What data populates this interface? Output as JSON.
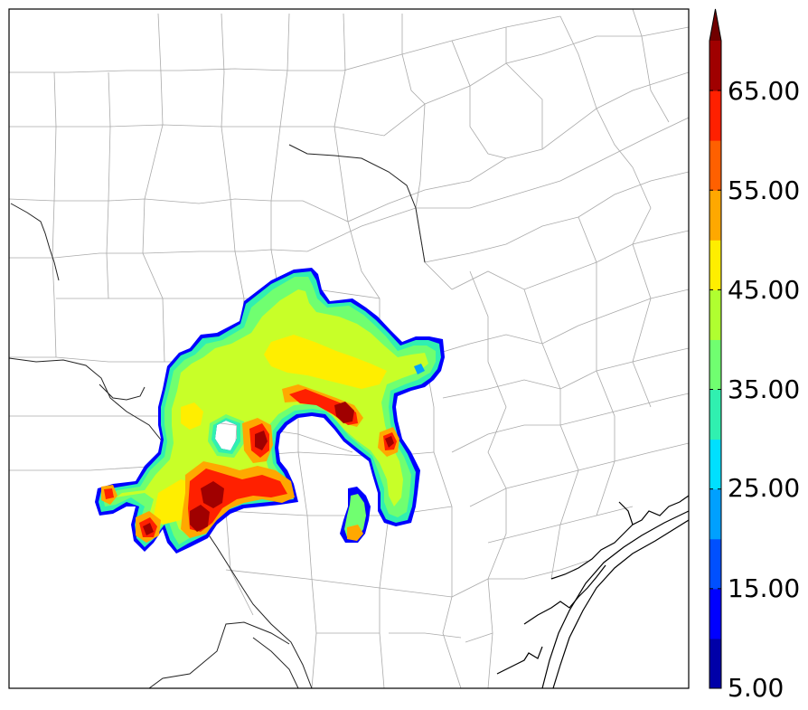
{
  "colorbar": {
    "tick_labels": [
      "5.00",
      "15.00",
      "25.00",
      "35.00",
      "45.00",
      "55.00",
      "65.00"
    ],
    "levels": [
      5,
      10,
      15,
      20,
      25,
      30,
      35,
      40,
      45,
      50,
      55,
      60,
      65,
      70
    ],
    "extend": "max",
    "colors": [
      "#0000a8",
      "#0000ff",
      "#0050ff",
      "#00a0ff",
      "#00e0ff",
      "#30f0b0",
      "#70ff70",
      "#b0ff30",
      "#ffee00",
      "#ffa800",
      "#ff6000",
      "#ff2000",
      "#a00000",
      "#700000"
    ]
  },
  "map": {
    "field_colors": {
      "low": "#0000ff",
      "cyan": "#00e0ff",
      "green": "#70ff70",
      "yellow_green": "#c8ff28",
      "yellow": "#ffee00",
      "orange": "#ffa800",
      "red": "#ff2000",
      "dark_red": "#a00000"
    },
    "county_line_color": "#aaaaaa",
    "coast_color": "#000000"
  }
}
